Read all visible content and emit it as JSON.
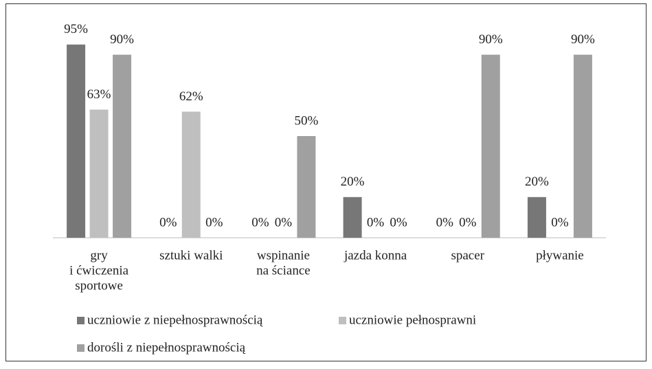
{
  "chart_data": {
    "type": "bar",
    "categories": [
      [
        "gry",
        "i ćwiczenia",
        "sportowe"
      ],
      [
        "sztuki walki"
      ],
      [
        "wspinanie",
        "na ściance"
      ],
      [
        "jazda konna"
      ],
      [
        "spacer"
      ],
      [
        "pływanie"
      ]
    ],
    "series": [
      {
        "name": "uczniowie z niepełnosprawnością",
        "color": "#777777",
        "values": [
          95,
          0,
          0,
          20,
          0,
          20
        ],
        "value_labels": [
          "95%",
          "0%",
          "0%",
          "20%",
          "0%",
          "20%"
        ]
      },
      {
        "name": "uczniowie pełnosprawni",
        "color": "#bfbfbf",
        "values": [
          63,
          62,
          0,
          0,
          0,
          0
        ],
        "value_labels": [
          "63%",
          "62%",
          "0%",
          "0%",
          "0%",
          "0%"
        ]
      },
      {
        "name": "dorośli z niepełnosprawnością",
        "color": "#a0a0a0",
        "values": [
          90,
          0,
          50,
          0,
          90,
          90
        ],
        "value_labels": [
          "90%",
          "0%",
          "50%",
          "0%",
          "90%",
          "90%"
        ]
      }
    ],
    "ylim": [
      0,
      100
    ]
  }
}
